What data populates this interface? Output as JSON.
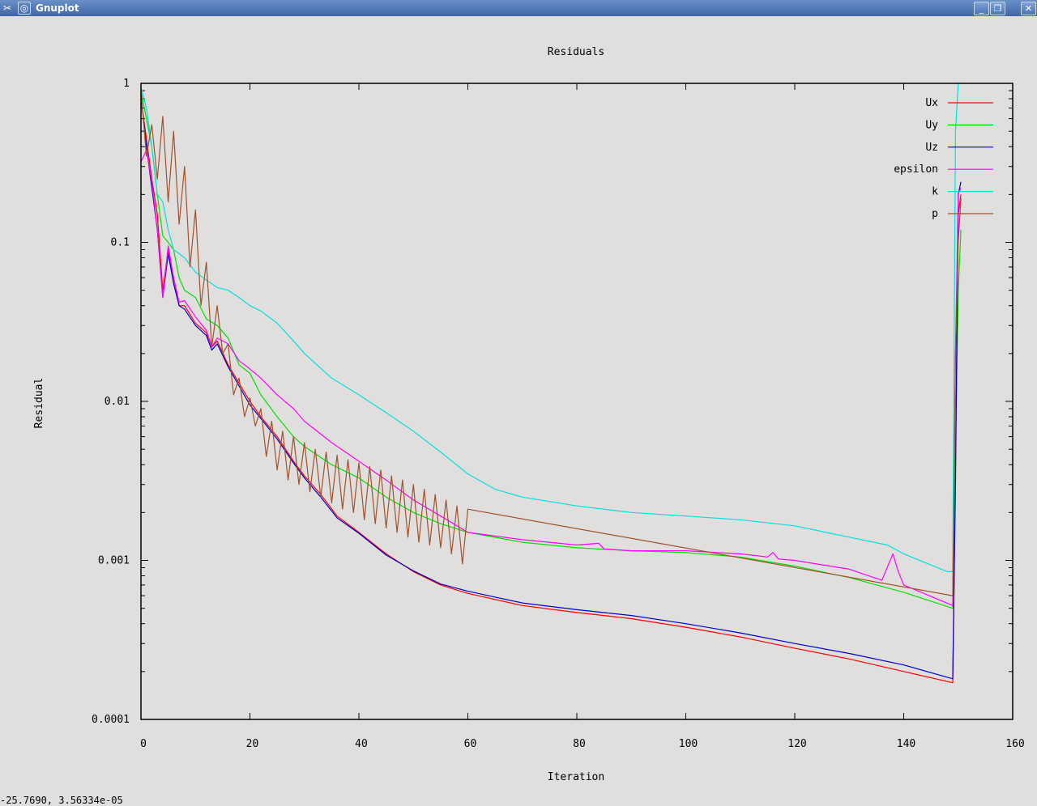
{
  "window": {
    "title": "Gnuplot",
    "icons": [
      "tools-icon",
      "window-menu-icon"
    ],
    "buttons": {
      "minimize": "_",
      "restore": "❐",
      "close": "✕"
    }
  },
  "status_readout": "-25.7690,  3.56334e-05",
  "chart_data": {
    "type": "line",
    "title": "Residuals",
    "xlabel": "Iteration",
    "ylabel": "Residual",
    "xlim": [
      0,
      160
    ],
    "ylim": [
      0.0001,
      1
    ],
    "yscale": "log",
    "xticks": [
      0,
      20,
      40,
      60,
      80,
      100,
      120,
      140,
      160
    ],
    "xtick_labels": [
      "0",
      "20",
      "40",
      "60",
      "80",
      "100",
      "120",
      "140",
      "160"
    ],
    "yticks": [
      1,
      0.1,
      0.01,
      0.001,
      0.0001
    ],
    "ytick_labels": [
      "1",
      "0.1",
      "0.01",
      "0.001",
      "0.0001"
    ],
    "grid": false,
    "legend_position": "top-right",
    "series": [
      {
        "name": "Ux",
        "color": "#ff0000",
        "points": [
          [
            0,
            0.8
          ],
          [
            1,
            0.45
          ],
          [
            2,
            0.25
          ],
          [
            3,
            0.15
          ],
          [
            4,
            0.05
          ],
          [
            5,
            0.09
          ],
          [
            6,
            0.06
          ],
          [
            7,
            0.04
          ],
          [
            8,
            0.04
          ],
          [
            10,
            0.031
          ],
          [
            12,
            0.027
          ],
          [
            13,
            0.022
          ],
          [
            14,
            0.024
          ],
          [
            16,
            0.017
          ],
          [
            18,
            0.013
          ],
          [
            20,
            0.01
          ],
          [
            22,
            0.008
          ],
          [
            25,
            0.006
          ],
          [
            28,
            0.0042
          ],
          [
            30,
            0.0034
          ],
          [
            33,
            0.0026
          ],
          [
            36,
            0.0019
          ],
          [
            40,
            0.0015
          ],
          [
            45,
            0.0011
          ],
          [
            50,
            0.00085
          ],
          [
            55,
            0.0007
          ],
          [
            60,
            0.00062
          ],
          [
            70,
            0.00052
          ],
          [
            80,
            0.00047
          ],
          [
            90,
            0.00043
          ],
          [
            100,
            0.00038
          ],
          [
            110,
            0.00033
          ],
          [
            120,
            0.00028
          ],
          [
            130,
            0.00024
          ],
          [
            140,
            0.0002
          ],
          [
            149,
            0.00017
          ],
          [
            149.5,
            0.004
          ],
          [
            150,
            0.15
          ],
          [
            150.5,
            0.2
          ]
        ]
      },
      {
        "name": "Uy",
        "color": "#00e000",
        "points": [
          [
            0,
            0.9
          ],
          [
            1,
            0.6
          ],
          [
            2,
            0.4
          ],
          [
            3,
            0.2
          ],
          [
            4,
            0.11
          ],
          [
            5,
            0.1
          ],
          [
            6,
            0.09
          ],
          [
            7,
            0.06
          ],
          [
            8,
            0.05
          ],
          [
            10,
            0.045
          ],
          [
            12,
            0.033
          ],
          [
            14,
            0.03
          ],
          [
            16,
            0.025
          ],
          [
            18,
            0.017
          ],
          [
            20,
            0.015
          ],
          [
            22,
            0.011
          ],
          [
            25,
            0.008
          ],
          [
            28,
            0.006
          ],
          [
            30,
            0.0052
          ],
          [
            35,
            0.004
          ],
          [
            40,
            0.0033
          ],
          [
            45,
            0.0025
          ],
          [
            50,
            0.002
          ],
          [
            55,
            0.0017
          ],
          [
            60,
            0.0015
          ],
          [
            70,
            0.0013
          ],
          [
            80,
            0.0012
          ],
          [
            90,
            0.00115
          ],
          [
            100,
            0.00112
          ],
          [
            110,
            0.00105
          ],
          [
            120,
            0.00092
          ],
          [
            130,
            0.00078
          ],
          [
            140,
            0.00063
          ],
          [
            149,
            0.0005
          ],
          [
            149.5,
            0.005
          ],
          [
            150,
            0.05
          ],
          [
            150.5,
            0.12
          ]
        ]
      },
      {
        "name": "Uz",
        "color": "#0000cc",
        "points": [
          [
            0,
            0.85
          ],
          [
            1,
            0.4
          ],
          [
            2,
            0.22
          ],
          [
            3,
            0.12
          ],
          [
            4,
            0.045
          ],
          [
            5,
            0.085
          ],
          [
            6,
            0.055
          ],
          [
            7,
            0.04
          ],
          [
            8,
            0.038
          ],
          [
            10,
            0.03
          ],
          [
            12,
            0.026
          ],
          [
            13,
            0.021
          ],
          [
            14,
            0.023
          ],
          [
            16,
            0.0165
          ],
          [
            18,
            0.0125
          ],
          [
            20,
            0.0095
          ],
          [
            22,
            0.0078
          ],
          [
            25,
            0.0058
          ],
          [
            28,
            0.0041
          ],
          [
            30,
            0.0033
          ],
          [
            33,
            0.0025
          ],
          [
            36,
            0.00185
          ],
          [
            40,
            0.00148
          ],
          [
            45,
            0.00108
          ],
          [
            50,
            0.00086
          ],
          [
            55,
            0.00071
          ],
          [
            60,
            0.00064
          ],
          [
            70,
            0.00054
          ],
          [
            80,
            0.00049
          ],
          [
            90,
            0.00045
          ],
          [
            100,
            0.0004
          ],
          [
            110,
            0.00035
          ],
          [
            120,
            0.0003
          ],
          [
            130,
            0.00026
          ],
          [
            140,
            0.00022
          ],
          [
            149,
            0.00018
          ],
          [
            149.5,
            0.003
          ],
          [
            150,
            0.2
          ],
          [
            150.5,
            0.24
          ]
        ]
      },
      {
        "name": "epsilon",
        "color": "#ff00ff",
        "points": [
          [
            0,
            0.32
          ],
          [
            1,
            0.38
          ],
          [
            2,
            0.24
          ],
          [
            3,
            0.12
          ],
          [
            4,
            0.045
          ],
          [
            5,
            0.095
          ],
          [
            6,
            0.06
          ],
          [
            7,
            0.042
          ],
          [
            8,
            0.043
          ],
          [
            10,
            0.034
          ],
          [
            12,
            0.028
          ],
          [
            13,
            0.022
          ],
          [
            14,
            0.025
          ],
          [
            16,
            0.023
          ],
          [
            18,
            0.018
          ],
          [
            20,
            0.016
          ],
          [
            22,
            0.014
          ],
          [
            25,
            0.011
          ],
          [
            28,
            0.009
          ],
          [
            30,
            0.0075
          ],
          [
            35,
            0.0055
          ],
          [
            40,
            0.0042
          ],
          [
            45,
            0.0032
          ],
          [
            50,
            0.0024
          ],
          [
            55,
            0.0019
          ],
          [
            60,
            0.0015
          ],
          [
            70,
            0.00135
          ],
          [
            80,
            0.00125
          ],
          [
            84,
            0.00128
          ],
          [
            85,
            0.00118
          ],
          [
            90,
            0.00115
          ],
          [
            100,
            0.00115
          ],
          [
            110,
            0.0011
          ],
          [
            115,
            0.00105
          ],
          [
            116,
            0.00112
          ],
          [
            117,
            0.00102
          ],
          [
            120,
            0.001
          ],
          [
            130,
            0.00088
          ],
          [
            136,
            0.00075
          ],
          [
            138,
            0.0011
          ],
          [
            139,
            0.00085
          ],
          [
            140,
            0.0007
          ],
          [
            149,
            0.00052
          ],
          [
            149.5,
            0.02
          ],
          [
            150,
            0.2
          ],
          [
            150.5,
            0.22
          ]
        ]
      },
      {
        "name": "k",
        "color": "#00e0e0",
        "points": [
          [
            0,
            0.95
          ],
          [
            1,
            0.7
          ],
          [
            2,
            0.4
          ],
          [
            3,
            0.2
          ],
          [
            4,
            0.18
          ],
          [
            5,
            0.12
          ],
          [
            6,
            0.09
          ],
          [
            8,
            0.08
          ],
          [
            10,
            0.065
          ],
          [
            12,
            0.058
          ],
          [
            14,
            0.052
          ],
          [
            16,
            0.05
          ],
          [
            18,
            0.045
          ],
          [
            20,
            0.04
          ],
          [
            22,
            0.037
          ],
          [
            25,
            0.031
          ],
          [
            28,
            0.024
          ],
          [
            30,
            0.02
          ],
          [
            35,
            0.014
          ],
          [
            40,
            0.011
          ],
          [
            45,
            0.0085
          ],
          [
            50,
            0.0065
          ],
          [
            55,
            0.0048
          ],
          [
            60,
            0.0035
          ],
          [
            65,
            0.0028
          ],
          [
            70,
            0.0025
          ],
          [
            80,
            0.0022
          ],
          [
            90,
            0.002
          ],
          [
            100,
            0.0019
          ],
          [
            110,
            0.0018
          ],
          [
            120,
            0.00165
          ],
          [
            130,
            0.0014
          ],
          [
            137,
            0.00125
          ],
          [
            140,
            0.0011
          ],
          [
            148,
            0.00085
          ],
          [
            149,
            0.00085
          ],
          [
            149.5,
            0.5
          ],
          [
            150,
            1
          ],
          [
            150.5,
            1
          ]
        ]
      },
      {
        "name": "p",
        "color": "#a0522d",
        "points": [
          [
            0,
            0.9
          ],
          [
            1,
            0.35
          ],
          [
            2,
            0.55
          ],
          [
            3,
            0.25
          ],
          [
            4,
            0.62
          ],
          [
            5,
            0.18
          ],
          [
            6,
            0.5
          ],
          [
            7,
            0.13
          ],
          [
            8,
            0.3
          ],
          [
            9,
            0.07
          ],
          [
            10,
            0.16
          ],
          [
            11,
            0.04
          ],
          [
            12,
            0.075
          ],
          [
            13,
            0.022
          ],
          [
            14,
            0.04
          ],
          [
            15,
            0.02
          ],
          [
            16,
            0.023
          ],
          [
            17,
            0.011
          ],
          [
            18,
            0.014
          ],
          [
            19,
            0.008
          ],
          [
            20,
            0.0105
          ],
          [
            21,
            0.007
          ],
          [
            22,
            0.009
          ],
          [
            23,
            0.0045
          ],
          [
            24,
            0.0075
          ],
          [
            25,
            0.0037
          ],
          [
            26,
            0.0065
          ],
          [
            27,
            0.0032
          ],
          [
            28,
            0.006
          ],
          [
            29,
            0.003
          ],
          [
            30,
            0.0055
          ],
          [
            31,
            0.0027
          ],
          [
            32,
            0.005
          ],
          [
            33,
            0.0025
          ],
          [
            34,
            0.0048
          ],
          [
            35,
            0.0023
          ],
          [
            36,
            0.0046
          ],
          [
            37,
            0.0021
          ],
          [
            38,
            0.0043
          ],
          [
            39,
            0.002
          ],
          [
            40,
            0.0041
          ],
          [
            41,
            0.0018
          ],
          [
            42,
            0.0039
          ],
          [
            43,
            0.0017
          ],
          [
            44,
            0.0037
          ],
          [
            45,
            0.0016
          ],
          [
            46,
            0.0034
          ],
          [
            47,
            0.0015
          ],
          [
            48,
            0.0032
          ],
          [
            49,
            0.0014
          ],
          [
            50,
            0.003
          ],
          [
            51,
            0.0013
          ],
          [
            52,
            0.0028
          ],
          [
            53,
            0.00125
          ],
          [
            54,
            0.0026
          ],
          [
            55,
            0.0012
          ],
          [
            56,
            0.0024
          ],
          [
            57,
            0.0011
          ],
          [
            58,
            0.0022
          ],
          [
            59,
            0.00095
          ],
          [
            60,
            0.0021
          ],
          [
            149,
            0.0006
          ],
          [
            149.5,
            0.02
          ],
          [
            150,
            0.1
          ],
          [
            150.5,
            0.19
          ]
        ]
      }
    ]
  }
}
